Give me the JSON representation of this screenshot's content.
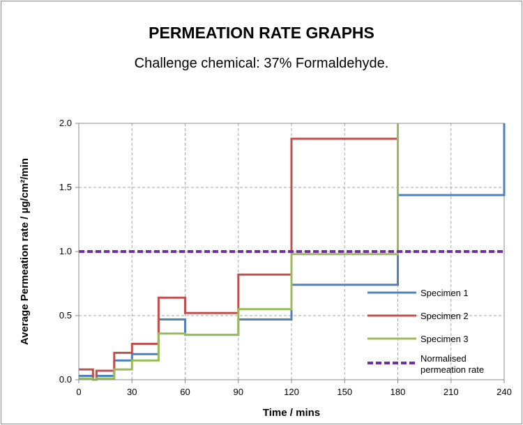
{
  "chart_data": {
    "type": "line",
    "step": true,
    "title": "PERMEATION RATE GRAPHS",
    "subtitle": "Challenge chemical: 37% Formaldehyde.",
    "xlabel": "Time / mins",
    "ylabel": "Average  Permeation  rate  /  µg/cm²/min",
    "xlim": [
      0,
      240
    ],
    "ylim": [
      0,
      2
    ],
    "xticks": [
      0,
      30,
      60,
      90,
      120,
      150,
      180,
      210,
      240
    ],
    "yticks": [
      0,
      0.5,
      1,
      1.5,
      2
    ],
    "xtick_labels": [
      "0",
      "30",
      "60",
      "90",
      "120",
      "150",
      "180",
      "210",
      "240"
    ],
    "ytick_labels": [
      "0.0",
      "0.5",
      "1.0",
      "1.5",
      "2.0"
    ],
    "grid": true,
    "legend_position": "bottom-right",
    "series": [
      {
        "name": "Specimen 1",
        "color": "#4f81bd",
        "dash": false,
        "points": [
          [
            0,
            0.03
          ],
          [
            8,
            0.03
          ],
          [
            8,
            0
          ],
          [
            10,
            0
          ],
          [
            10,
            0.03
          ],
          [
            20,
            0.03
          ],
          [
            20,
            0.15
          ],
          [
            30,
            0.15
          ],
          [
            30,
            0.2
          ],
          [
            45,
            0.2
          ],
          [
            45,
            0.47
          ],
          [
            60,
            0.47
          ],
          [
            60,
            0.35
          ],
          [
            90,
            0.35
          ],
          [
            90,
            0.47
          ],
          [
            120,
            0.47
          ],
          [
            120,
            0.74
          ],
          [
            180,
            0.74
          ],
          [
            180,
            1.44
          ],
          [
            240,
            1.44
          ],
          [
            240,
            2.0
          ]
        ]
      },
      {
        "name": "Specimen 2",
        "color": "#c0504d",
        "dash": false,
        "points": [
          [
            0,
            0.08
          ],
          [
            8,
            0.08
          ],
          [
            8,
            0
          ],
          [
            10,
            0
          ],
          [
            10,
            0.07
          ],
          [
            20,
            0.07
          ],
          [
            20,
            0.21
          ],
          [
            30,
            0.21
          ],
          [
            30,
            0.28
          ],
          [
            45,
            0.28
          ],
          [
            45,
            0.64
          ],
          [
            60,
            0.64
          ],
          [
            60,
            0.52
          ],
          [
            90,
            0.52
          ],
          [
            90,
            0.82
          ],
          [
            120,
            0.82
          ],
          [
            120,
            1.88
          ],
          [
            180,
            1.88
          ],
          [
            180,
            2.0
          ]
        ]
      },
      {
        "name": "Specimen 3",
        "color": "#9bbb59",
        "dash": false,
        "points": [
          [
            0,
            0.01
          ],
          [
            8,
            0.01
          ],
          [
            8,
            0
          ],
          [
            10,
            0
          ],
          [
            10,
            0.01
          ],
          [
            20,
            0.01
          ],
          [
            20,
            0.08
          ],
          [
            30,
            0.08
          ],
          [
            30,
            0.15
          ],
          [
            45,
            0.15
          ],
          [
            45,
            0.36
          ],
          [
            60,
            0.36
          ],
          [
            60,
            0.35
          ],
          [
            90,
            0.35
          ],
          [
            90,
            0.55
          ],
          [
            120,
            0.55
          ],
          [
            120,
            0.98
          ],
          [
            180,
            0.98
          ],
          [
            180,
            2.0
          ]
        ]
      },
      {
        "name": "Normalised permeation rate",
        "name_lines": [
          "Normalised",
          "permeation rate"
        ],
        "color": "#7030a0",
        "dash": true,
        "points": [
          [
            0,
            1
          ],
          [
            240,
            1
          ]
        ]
      }
    ]
  }
}
